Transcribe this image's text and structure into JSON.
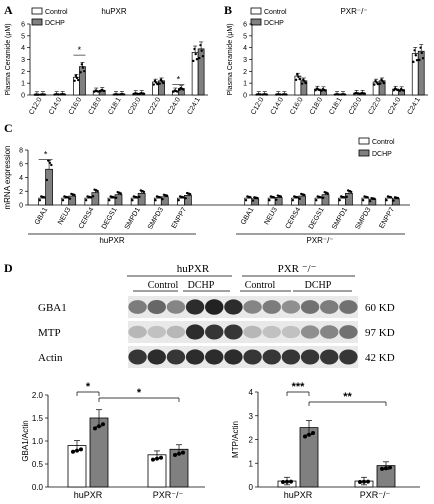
{
  "panels": {
    "A": "A",
    "B": "B",
    "C": "C",
    "D": "D"
  },
  "legend": {
    "control": "Control",
    "dchp": "DCHP"
  },
  "colors": {
    "control_fill": "#ffffff",
    "dchp_fill": "#808080",
    "stroke": "#000000",
    "blot_bg": "#e9e9e9",
    "band": "#222222"
  },
  "chart_data": [
    {
      "id": "panel-a",
      "type": "bar",
      "title": "huPXR",
      "xlabel": "",
      "ylabel": "Plasma Ceramide (μM)",
      "ylim": [
        0,
        6
      ],
      "yticks": [
        0,
        1,
        2,
        3,
        4,
        5,
        6
      ],
      "categories": [
        "C12:0",
        "C14:0",
        "C16:0",
        "C18:0",
        "C18:1",
        "C20:0",
        "C22:0",
        "C24:0",
        "C24:1"
      ],
      "series": [
        {
          "name": "Control",
          "values": [
            0.03,
            0.05,
            1.5,
            0.35,
            0.05,
            0.12,
            1.1,
            0.35,
            3.6
          ]
        },
        {
          "name": "DCHP",
          "values": [
            0.04,
            0.06,
            2.4,
            0.4,
            0.06,
            0.14,
            1.2,
            0.55,
            3.9
          ]
        }
      ],
      "significance": [
        {
          "category": "C16:0",
          "label": "*"
        },
        {
          "category": "C24:0",
          "label": "*"
        }
      ]
    },
    {
      "id": "panel-b",
      "type": "bar",
      "title": "PXR⁻/⁻",
      "xlabel": "",
      "ylabel": "Plasma Ceramide (μM)",
      "ylim": [
        0,
        6
      ],
      "yticks": [
        0,
        1,
        2,
        3,
        4,
        5,
        6
      ],
      "categories": [
        "C12:0",
        "C14:0",
        "C16:0",
        "C18:0",
        "C18:1",
        "C20:0",
        "C22:0",
        "C24:0",
        "C24:1"
      ],
      "series": [
        {
          "name": "Control",
          "values": [
            0.05,
            0.05,
            1.6,
            0.5,
            0.05,
            0.15,
            1.1,
            0.5,
            3.5
          ]
        },
        {
          "name": "DCHP",
          "values": [
            0.05,
            0.05,
            1.2,
            0.45,
            0.05,
            0.15,
            1.2,
            0.45,
            3.7
          ]
        }
      ]
    },
    {
      "id": "panel-c",
      "type": "bar",
      "title": "",
      "xlabel": "",
      "ylabel": "mRNA expression",
      "ylim": [
        0,
        8
      ],
      "yticks": [
        0,
        2,
        4,
        6,
        8
      ],
      "groups": [
        {
          "label": "huPXR",
          "categories": [
            "GBA1",
            "NEU3",
            "CERS4",
            "DEGS1",
            "SMPD1",
            "SMPD3",
            "ENPP7"
          ],
          "series": [
            {
              "name": "Control",
              "values": [
                1.0,
                1.0,
                1.0,
                1.0,
                1.0,
                1.0,
                1.0
              ]
            },
            {
              "name": "DCHP",
              "values": [
                5.2,
                1.3,
                1.8,
                1.5,
                1.7,
                1.2,
                1.4
              ]
            }
          ]
        },
        {
          "label": "PXR⁻/⁻",
          "categories": [
            "GBA1",
            "NEU3",
            "CERS4",
            "DEGS1",
            "SMPD1",
            "SMPD3",
            "ENPP7"
          ],
          "series": [
            {
              "name": "Control",
              "values": [
                1.0,
                1.0,
                1.0,
                1.0,
                1.0,
                1.0,
                1.0
              ]
            },
            {
              "name": "DCHP",
              "values": [
                0.9,
                1.1,
                1.3,
                1.5,
                1.7,
                0.8,
                0.9
              ]
            }
          ]
        }
      ],
      "significance": [
        {
          "group": "huPXR",
          "category": "GBA1",
          "label": "*"
        }
      ]
    },
    {
      "id": "panel-d-gba1",
      "type": "bar",
      "title": "",
      "xlabel": "",
      "ylabel": "GBA1/Actin",
      "ylim": [
        0,
        2.0
      ],
      "yticks": [
        0.0,
        0.5,
        1.0,
        1.5,
        2.0
      ],
      "categories": [
        "huPXR",
        "PXR⁻/⁻"
      ],
      "series": [
        {
          "name": "Control",
          "values": [
            0.9,
            0.7
          ]
        },
        {
          "name": "DCHP",
          "values": [
            1.5,
            0.82
          ]
        }
      ],
      "significance": [
        {
          "label": "*",
          "between": [
            "huPXR Control",
            "huPXR DCHP"
          ]
        },
        {
          "label": "*",
          "between": [
            "huPXR DCHP",
            "PXR⁻/⁻ DCHP"
          ]
        }
      ]
    },
    {
      "id": "panel-d-mtp",
      "type": "bar",
      "title": "",
      "xlabel": "",
      "ylabel": "MTP/Actin",
      "ylim": [
        0,
        4
      ],
      "yticks": [
        0,
        1,
        2,
        3,
        4
      ],
      "categories": [
        "huPXR",
        "PXR⁻/⁻"
      ],
      "series": [
        {
          "name": "Control",
          "values": [
            0.25,
            0.25
          ]
        },
        {
          "name": "DCHP",
          "values": [
            2.5,
            0.9
          ]
        }
      ],
      "significance": [
        {
          "label": "***",
          "between": [
            "huPXR Control",
            "huPXR DCHP"
          ]
        },
        {
          "label": "**",
          "between": [
            "huPXR DCHP",
            "PXR⁻/⁻ DCHP"
          ]
        }
      ]
    }
  ],
  "blot": {
    "genotypes": [
      "huPXR",
      "PXR ⁻/⁻"
    ],
    "treatments": [
      "Control",
      "DCHP",
      "Control",
      "DCHP"
    ],
    "rows": [
      {
        "protein": "GBA1",
        "size": "60 KD",
        "intensity": [
          0.55,
          0.65,
          0.5,
          0.95,
          1.0,
          0.95,
          0.5,
          0.55,
          0.45,
          0.6,
          0.55,
          0.6
        ]
      },
      {
        "protein": "MTP",
        "size": "97 KD",
        "intensity": [
          0.25,
          0.2,
          0.25,
          0.95,
          0.9,
          0.9,
          0.25,
          0.2,
          0.2,
          0.45,
          0.5,
          0.6
        ]
      },
      {
        "protein": "Actin",
        "size": "42 KD",
        "intensity": [
          0.9,
          0.95,
          0.9,
          0.95,
          0.95,
          0.95,
          0.9,
          0.9,
          0.9,
          0.9,
          0.9,
          0.9
        ]
      }
    ]
  }
}
